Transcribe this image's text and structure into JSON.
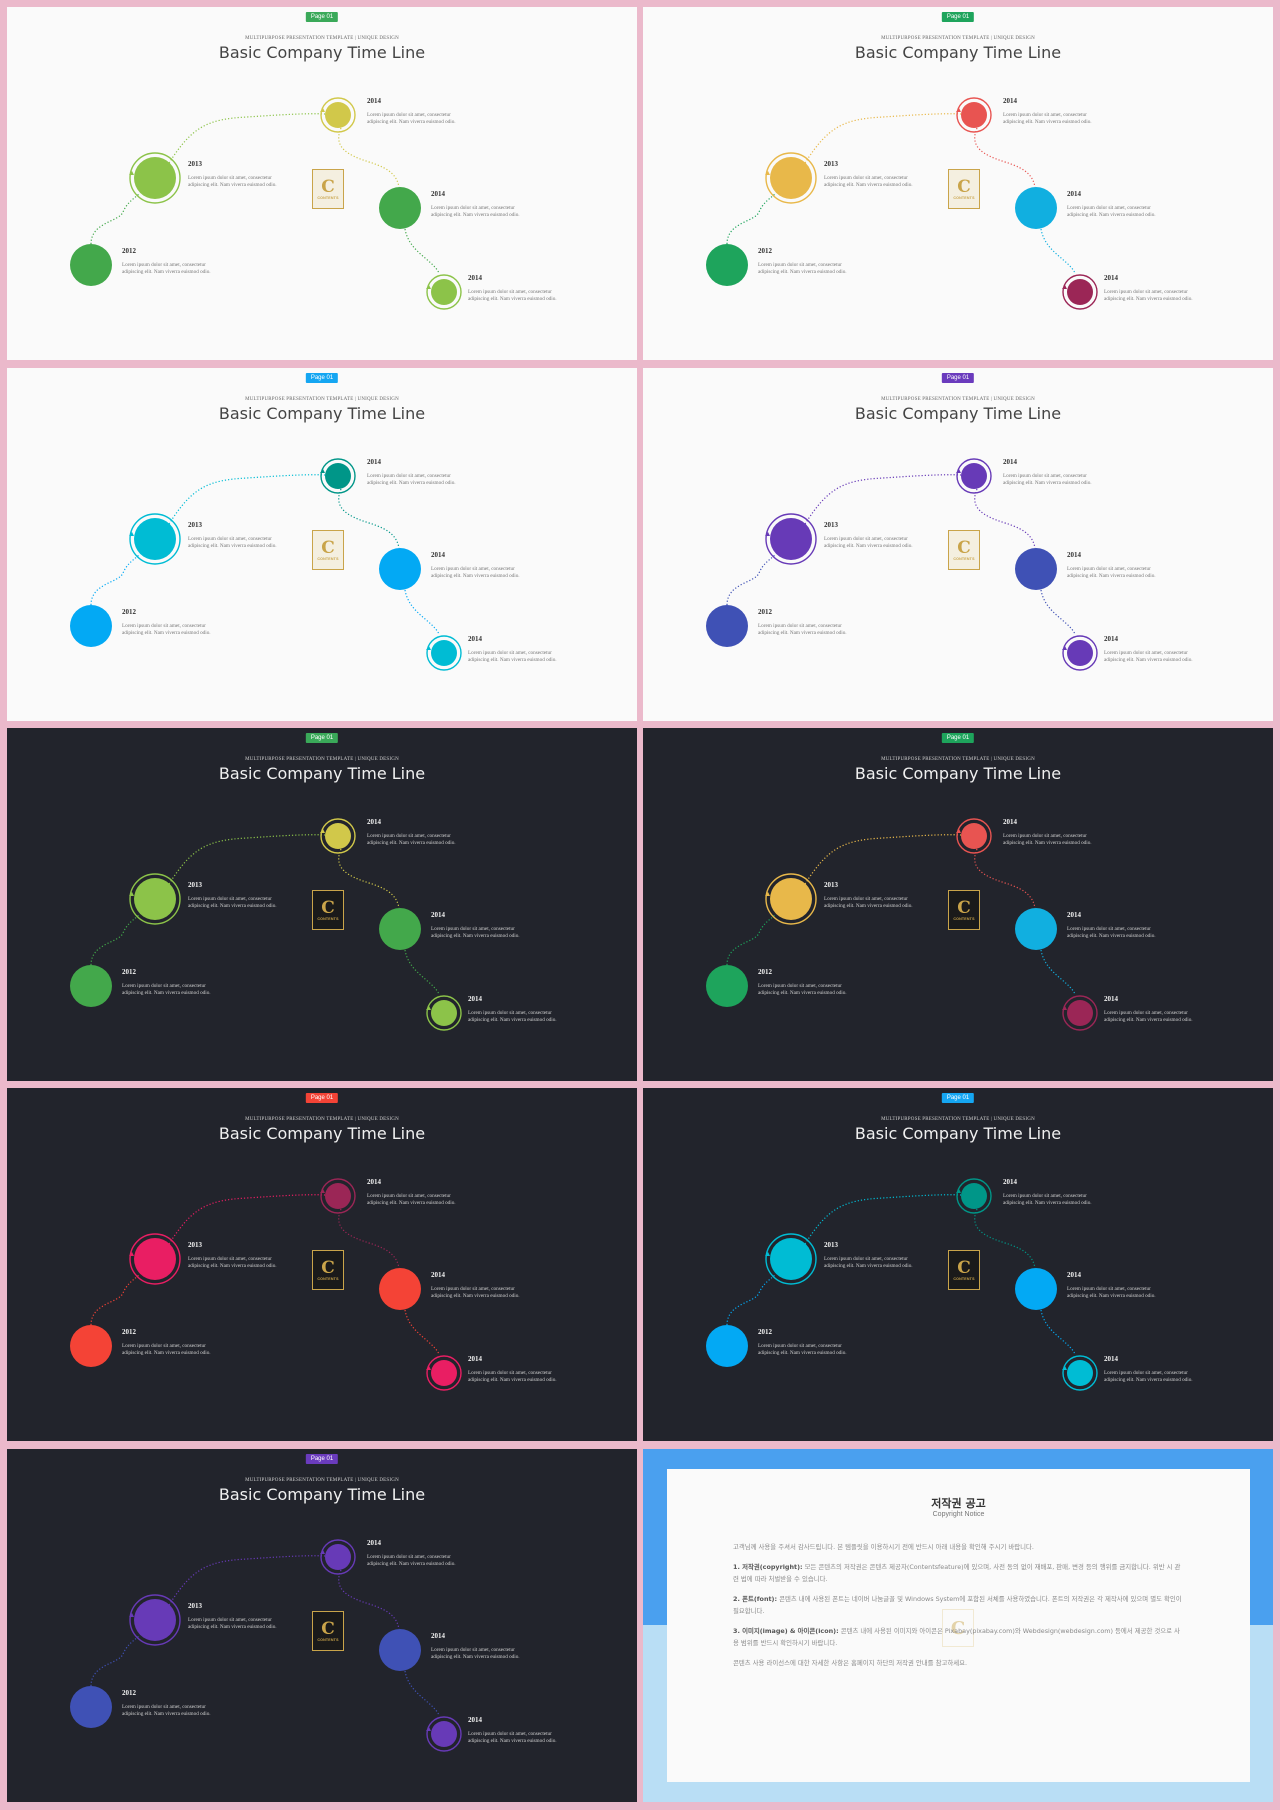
{
  "slides": [
    {
      "theme": "light",
      "badge": "Page 01",
      "badge_color": "#3aa959",
      "kicker": "MULTIPURPOSE PRESENTATION TEMPLATE | UNIQUE DESIGN",
      "title": "Basic Company Time Line",
      "colors": [
        "#43a84b",
        "#8cc349",
        "#d1c84a",
        "#43a84b",
        "#8cc349"
      ],
      "path_colors": [
        "#43a84b",
        "#8cc349",
        "#d1c84a",
        "#43a84b"
      ]
    },
    {
      "theme": "light",
      "badge": "Page 01",
      "badge_color": "#1ea45c",
      "kicker": "MULTIPURPOSE PRESENTATION TEMPLATE | UNIQUE DESIGN",
      "title": "Basic Company Time Line",
      "colors": [
        "#1ea45c",
        "#e8b84a",
        "#e85451",
        "#11afe0",
        "#9b2656"
      ],
      "path_colors": [
        "#1ea45c",
        "#e8b84a",
        "#e85451",
        "#11afe0"
      ]
    },
    {
      "theme": "light",
      "badge": "Page 01",
      "badge_color": "#15a6f2",
      "kicker": "MULTIPURPOSE PRESENTATION TEMPLATE | UNIQUE DESIGN",
      "title": "Basic Company Time Line",
      "colors": [
        "#03a9f4",
        "#00bcd4",
        "#009688",
        "#03a9f4",
        "#00bcd4"
      ],
      "path_colors": [
        "#03a9f4",
        "#00bcd4",
        "#009688",
        "#03a9f4"
      ]
    },
    {
      "theme": "light",
      "badge": "Page 01",
      "badge_color": "#6a3bbd",
      "kicker": "MULTIPURPOSE PRESENTATION TEMPLATE | UNIQUE DESIGN",
      "title": "Basic Company Time Line",
      "colors": [
        "#3f51b5",
        "#673ab7",
        "#673ab7",
        "#3f51b5",
        "#673ab7"
      ],
      "path_colors": [
        "#3f51b5",
        "#673ab7",
        "#673ab7",
        "#3f51b5"
      ]
    },
    {
      "theme": "dark",
      "badge": "Page 01",
      "badge_color": "#3aa959",
      "kicker": "MULTIPURPOSE PRESENTATION TEMPLATE | UNIQUE DESIGN",
      "title": "Basic Company Time Line",
      "colors": [
        "#43a84b",
        "#8cc349",
        "#d1c84a",
        "#43a84b",
        "#8cc349"
      ],
      "path_colors": [
        "#43a84b",
        "#8cc349",
        "#d1c84a",
        "#43a84b"
      ]
    },
    {
      "theme": "dark",
      "badge": "Page 01",
      "badge_color": "#1ea45c",
      "kicker": "MULTIPURPOSE PRESENTATION TEMPLATE | UNIQUE DESIGN",
      "title": "Basic Company Time Line",
      "colors": [
        "#1ea45c",
        "#e8b84a",
        "#e85451",
        "#11afe0",
        "#9b2656"
      ],
      "path_colors": [
        "#1ea45c",
        "#e8b84a",
        "#e85451",
        "#11afe0"
      ]
    },
    {
      "theme": "dark",
      "badge": "Page 01",
      "badge_color": "#f44336",
      "kicker": "MULTIPURPOSE PRESENTATION TEMPLATE | UNIQUE DESIGN",
      "title": "Basic Company Time Line",
      "colors": [
        "#f44336",
        "#e91e63",
        "#9b2656",
        "#f44336",
        "#e91e63"
      ],
      "path_colors": [
        "#f44336",
        "#e91e63",
        "#9b2656",
        "#f44336"
      ]
    },
    {
      "theme": "dark",
      "badge": "Page 01",
      "badge_color": "#15a6f2",
      "kicker": "MULTIPURPOSE PRESENTATION TEMPLATE | UNIQUE DESIGN",
      "title": "Basic Company Time Line",
      "colors": [
        "#03a9f4",
        "#00bcd4",
        "#009688",
        "#03a9f4",
        "#00bcd4"
      ],
      "path_colors": [
        "#03a9f4",
        "#00bcd4",
        "#009688",
        "#03a9f4"
      ]
    },
    {
      "theme": "dark",
      "badge": "Page 01",
      "badge_color": "#6a3bbd",
      "kicker": "MULTIPURPOSE PRESENTATION TEMPLATE | UNIQUE DESIGN",
      "title": "Basic Company Time Line",
      "colors": [
        "#3f51b5",
        "#673ab7",
        "#673ab7",
        "#3f51b5",
        "#673ab7"
      ],
      "path_colors": [
        "#3f51b5",
        "#673ab7",
        "#673ab7",
        "#3f51b5"
      ]
    }
  ],
  "timeline": {
    "years": [
      "2012",
      "2013",
      "2014",
      "2014",
      "2014"
    ],
    "text_line1": "Lorem ipsum dolor sit amet, consectetur",
    "text_line2": "adipiscing elit. Nam viverra euismod odio."
  },
  "logo": {
    "letter": "C",
    "text": "CONTENTS"
  },
  "notice": {
    "title": "저작권 공고",
    "subtitle": "Copyright Notice",
    "intro": "고객님께 사용을 주셔서 감사드립니다. 본 템플릿을 이용하시기 전에 반드시 아래 내용을 확인해 주시기 바랍니다.",
    "p1_head": "1. 저작권(copyright):",
    "p1": "모든 콘텐츠의 저작권은 콘텐츠 제공자(Contentsfeature)에 있으며, 사전 동의 없이 재배포, 판매, 변경 등의 행위를 금지합니다. 위반 시 관련 법에 따라 처벌받을 수 있습니다.",
    "p2_head": "2. 폰트(font):",
    "p2": "콘텐츠 내에 사용된 폰트는 네이버 나눔글꼴 및 Windows System에 포함된 서체를 사용하였습니다. 폰트의 저작권은 각 제작사에 있으며 별도 확인이 필요합니다.",
    "p3_head": "3. 이미지(image) & 아이콘(icon):",
    "p3": "콘텐츠 내에 사용된 이미지와 아이콘은 Pixabay(pixabay.com)와 Webdesign(webdesign.com) 등에서 제공한 것으로 사용 범위를 반드시 확인하시기 바랍니다.",
    "outro": "콘텐츠 사용 라이선스에 대한 자세한 사항은 홈페이지 하단의 저작권 안내를 참고하세요."
  }
}
